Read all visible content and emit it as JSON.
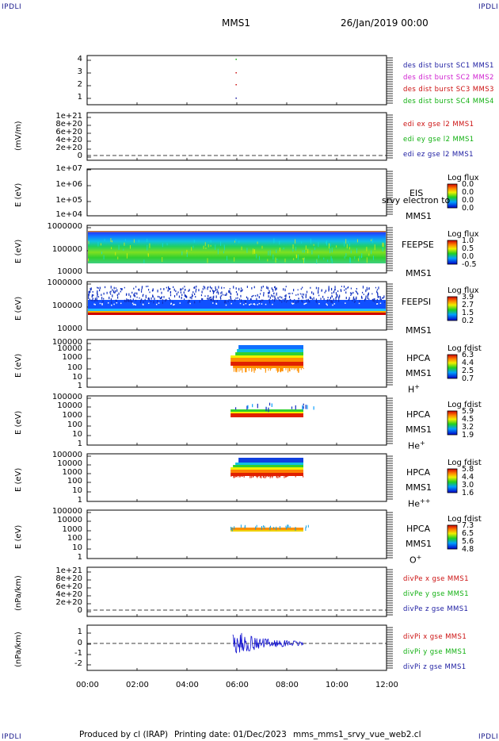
{
  "corners": {
    "tl": "IPDLI",
    "tr": "IPDLI",
    "bl": "IPDLI",
    "br": "IPDLI"
  },
  "header": {
    "mission": "MMS1",
    "date": "26/Jan/2019 00:00"
  },
  "footer": {
    "producer": "Produced by cl (IRAP)",
    "printing": "Printing date: 01/Dec/2023",
    "file": "mms_mms1_srvy_vue_web2.cl"
  },
  "x_ticks": [
    "00:00",
    "02:00",
    "04:00",
    "06:00",
    "08:00",
    "10:00",
    "12:00"
  ],
  "panels": [
    {
      "id": "p1",
      "ylabel": "",
      "ticks": [
        "4",
        "3",
        "2",
        "1"
      ],
      "legend": [
        {
          "text": "des dist burst SC1 MMS1",
          "color": "#1a1aa0"
        },
        {
          "text": "des dist burst SC2 MMS2",
          "color": "#d020d0"
        },
        {
          "text": "des dist burst SC3 MMS3",
          "color": "#cc1010"
        },
        {
          "text": "des dist burst SC4 MMS4",
          "color": "#10b010"
        }
      ]
    },
    {
      "id": "p2",
      "ylabel": "(mV/m)",
      "ticks": [
        "1e+21",
        "8e+20",
        "6e+20",
        "4e+20",
        "2e+20",
        "0"
      ],
      "legend": [
        {
          "text": "edi ex gse l2 MMS1",
          "color": "#cc1010"
        },
        {
          "text": "edi ey gse l2 MMS1",
          "color": "#10b010"
        },
        {
          "text": "edi ez gse l2 MMS1",
          "color": "#1a1aa0"
        }
      ]
    },
    {
      "id": "p3",
      "ylabel": "E (eV)",
      "ticks": [
        "1e+07",
        "1e+06",
        "1e+05",
        "1e+04"
      ],
      "inst": [
        "EIS",
        "srvy electron to",
        "MMS1"
      ],
      "cbar": {
        "title": "Log flux",
        "vals": [
          "0.0",
          "0.0",
          "0.0",
          "0.0"
        ]
      }
    },
    {
      "id": "p4",
      "ylabel": "E (eV)",
      "ticks": [
        "1000000",
        "100000",
        "10000"
      ],
      "inst": [
        "FEEPSE",
        "MMS1"
      ],
      "cbar": {
        "title": "Log flux",
        "vals": [
          "1.0",
          "0.5",
          "0.0",
          "-0.5"
        ]
      }
    },
    {
      "id": "p5",
      "ylabel": "E (eV)",
      "ticks": [
        "1000000",
        "100000",
        "10000"
      ],
      "inst": [
        "FEEPSI",
        "MMS1"
      ],
      "cbar": {
        "title": "Log flux",
        "vals": [
          "3.9",
          "2.7",
          "1.5",
          "0.2"
        ]
      }
    },
    {
      "id": "p6",
      "ylabel": "E (eV)",
      "ticks": [
        "100000",
        "10000",
        "1000",
        "100",
        "10",
        "1"
      ],
      "inst": [
        "HPCA",
        "MMS1",
        "H",
        "+"
      ],
      "cbar": {
        "title": "Log fdist",
        "vals": [
          "6.3",
          "4.4",
          "2.5",
          "0.7"
        ]
      }
    },
    {
      "id": "p7",
      "ylabel": "E (eV)",
      "ticks": [
        "100000",
        "10000",
        "1000",
        "100",
        "10",
        "1"
      ],
      "inst": [
        "HPCA",
        "MMS1",
        "He",
        "+"
      ],
      "cbar": {
        "title": "Log fdist",
        "vals": [
          "5.9",
          "4.5",
          "3.2",
          "1.9"
        ]
      }
    },
    {
      "id": "p8",
      "ylabel": "E (eV)",
      "ticks": [
        "100000",
        "10000",
        "1000",
        "100",
        "10",
        "1"
      ],
      "inst": [
        "HPCA",
        "MMS1",
        "He",
        "++"
      ],
      "cbar": {
        "title": "Log fdist",
        "vals": [
          "5.8",
          "4.4",
          "3.0",
          "1.6"
        ]
      }
    },
    {
      "id": "p9",
      "ylabel": "E (eV)",
      "ticks": [
        "100000",
        "10000",
        "1000",
        "100",
        "10",
        "1"
      ],
      "inst": [
        "HPCA",
        "MMS1",
        "O",
        "+"
      ],
      "cbar": {
        "title": "Log fdist",
        "vals": [
          "7.3",
          "6.5",
          "5.6",
          "4.8"
        ]
      }
    },
    {
      "id": "p10",
      "ylabel": "(nPa/km)",
      "ticks": [
        "1e+21",
        "8e+20",
        "6e+20",
        "4e+20",
        "2e+20",
        "0"
      ],
      "legend": [
        {
          "text": "divPe x gse MMS1",
          "color": "#cc1010"
        },
        {
          "text": "divPe y gse MMS1",
          "color": "#10b010"
        },
        {
          "text": "divPe z gse MMS1",
          "color": "#1a1aa0"
        }
      ]
    },
    {
      "id": "p11",
      "ylabel": "(nPa/km)",
      "ticks": [
        "1",
        "0",
        "-1",
        "-2"
      ],
      "legend": [
        {
          "text": "divPi x gse MMS1",
          "color": "#cc1010"
        },
        {
          "text": "divPi y gse MMS1",
          "color": "#10b010"
        },
        {
          "text": "divPi z gse MMS1",
          "color": "#1a1aa0"
        }
      ]
    }
  ],
  "chart_data": {
    "type": "heatmap",
    "x_range": [
      "00:00",
      "12:00"
    ],
    "hpca_interval": [
      "05:45",
      "08:40"
    ],
    "divPi_interval": [
      "05:50",
      "08:40"
    ]
  }
}
